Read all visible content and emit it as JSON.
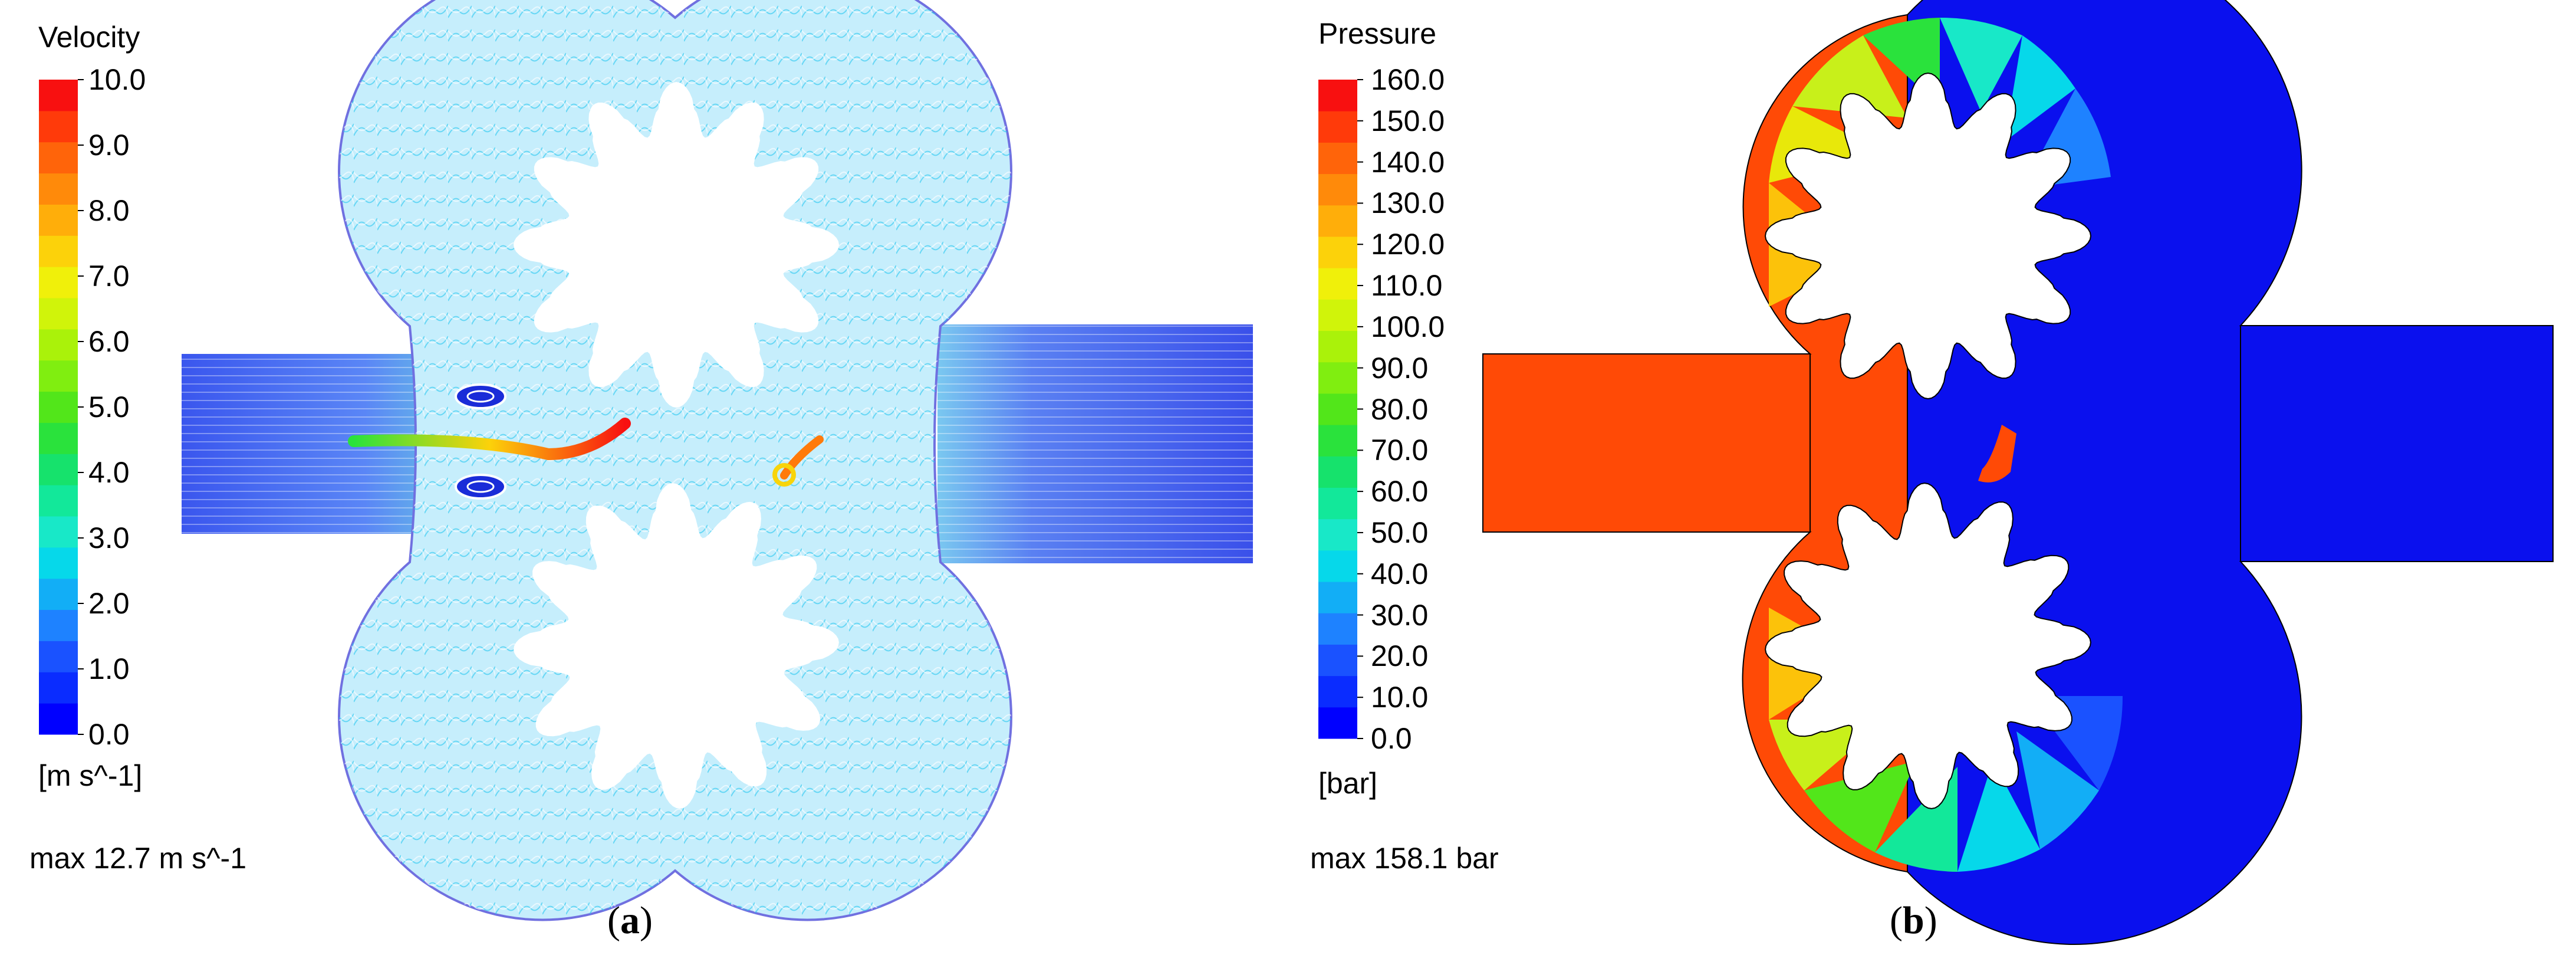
{
  "panels": [
    {
      "id": "a",
      "legend": {
        "title": "Velocity",
        "ticks": [
          "0.0",
          "1.0",
          "2.0",
          "3.0",
          "4.0",
          "5.0",
          "6.0",
          "7.0",
          "8.0",
          "9.0",
          "10.0"
        ],
        "unit": "[m s^-1]",
        "max": "max 12.7 m s^-1",
        "colors": [
          "#0000ff",
          "#0a2cff",
          "#1a52ff",
          "#1e82ff",
          "#12aef6",
          "#06d8ea",
          "#18e8c8",
          "#12e89a",
          "#16e26c",
          "#2ae23c",
          "#52e61a",
          "#80ee10",
          "#aaf20a",
          "#d0f40a",
          "#f0f00a",
          "#fcd20a",
          "#ffae0a",
          "#ff8a0a",
          "#ff640a",
          "#ff3a0a",
          "#f81010"
        ]
      },
      "caption_letter": "a",
      "caption_open": "(",
      "caption_close": ")"
    },
    {
      "id": "b",
      "legend": {
        "title": "Pressure",
        "ticks": [
          "0.0",
          "10.0",
          "20.0",
          "30.0",
          "40.0",
          "50.0",
          "60.0",
          "70.0",
          "80.0",
          "90.0",
          "100.0",
          "110.0",
          "120.0",
          "130.0",
          "140.0",
          "150.0",
          "160.0"
        ],
        "unit": "[bar]",
        "max": "max 158.1 bar",
        "colors": [
          "#0000ff",
          "#0a2cff",
          "#1a52ff",
          "#1e82ff",
          "#12aef6",
          "#06d8ea",
          "#18e8c8",
          "#12e89a",
          "#16e26c",
          "#2ae23c",
          "#52e61a",
          "#80ee10",
          "#aaf20a",
          "#d0f40a",
          "#f0f00a",
          "#fcd20a",
          "#ffae0a",
          "#ff8a0a",
          "#ff640a",
          "#ff3a0a",
          "#f81010"
        ]
      },
      "caption_letter": "b",
      "caption_open": "(",
      "caption_close": ")"
    }
  ]
}
